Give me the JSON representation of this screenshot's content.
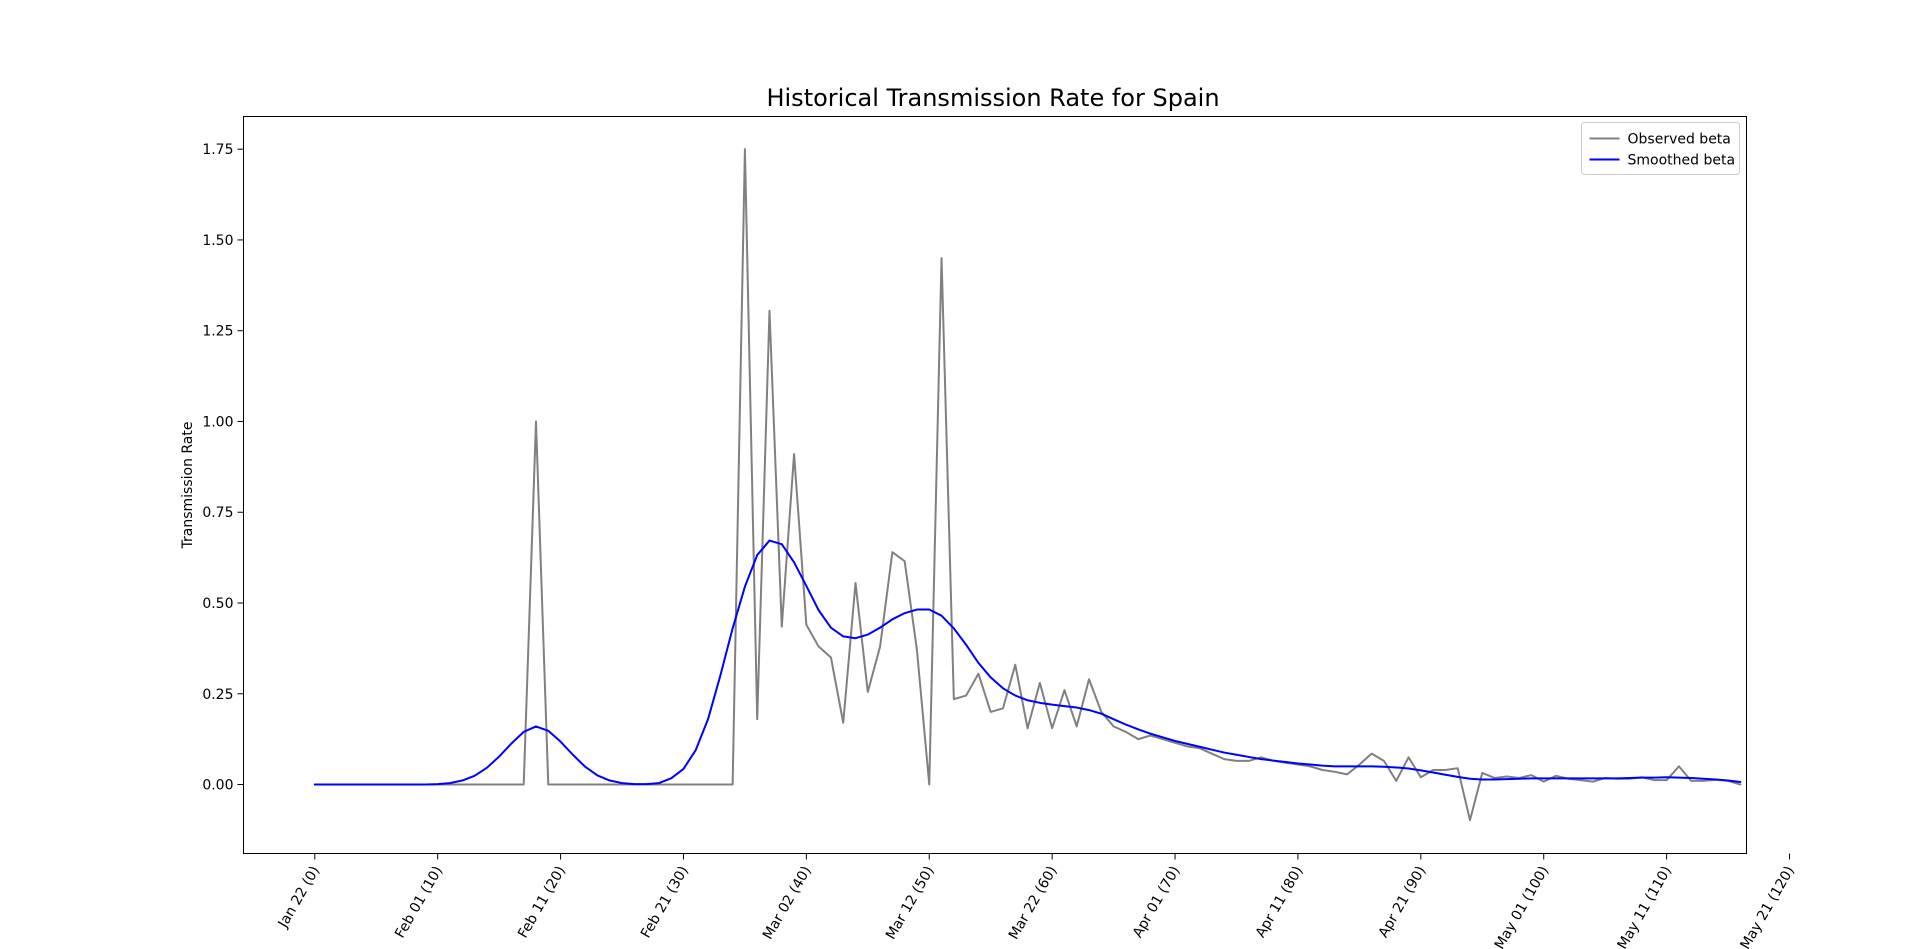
{
  "chart_data": {
    "type": "line",
    "title": "Historical Transmission Rate for Spain",
    "xlabel": "",
    "ylabel": "Transmission Rate",
    "xlim": [
      -5.8,
      116.5
    ],
    "ylim": [
      -0.19,
      1.84
    ],
    "x_ticks": [
      {
        "value": 0,
        "label": "Jan 22  (0)"
      },
      {
        "value": 10,
        "label": "Feb 01  (10)"
      },
      {
        "value": 20,
        "label": "Feb 11  (20)"
      },
      {
        "value": 30,
        "label": "Feb 21  (30)"
      },
      {
        "value": 40,
        "label": "Mar 02  (40)"
      },
      {
        "value": 50,
        "label": "Mar 12  (50)"
      },
      {
        "value": 60,
        "label": "Mar 22  (60)"
      },
      {
        "value": 70,
        "label": "Apr 01  (70)"
      },
      {
        "value": 80,
        "label": "Apr 11  (80)"
      },
      {
        "value": 90,
        "label": "Apr 21  (90)"
      },
      {
        "value": 100,
        "label": "May 01  (100)"
      },
      {
        "value": 110,
        "label": "May 11  (110)"
      },
      {
        "value": 120,
        "label": "May 21  (120)"
      }
    ],
    "y_ticks": [
      {
        "value": 0.0,
        "label": "0.00"
      },
      {
        "value": 0.25,
        "label": "0.25"
      },
      {
        "value": 0.5,
        "label": "0.50"
      },
      {
        "value": 0.75,
        "label": "0.75"
      },
      {
        "value": 1.0,
        "label": "1.00"
      },
      {
        "value": 1.25,
        "label": "1.25"
      },
      {
        "value": 1.5,
        "label": "1.50"
      },
      {
        "value": 1.75,
        "label": "1.75"
      }
    ],
    "grid": false,
    "legend_position": "top-right",
    "series": [
      {
        "name": "Observed beta",
        "color": "#808080",
        "x": [
          0,
          1,
          2,
          3,
          4,
          5,
          6,
          7,
          8,
          9,
          10,
          11,
          12,
          13,
          14,
          15,
          16,
          17,
          18,
          19,
          20,
          21,
          22,
          23,
          24,
          25,
          26,
          27,
          28,
          29,
          30,
          31,
          32,
          33,
          34,
          35,
          36,
          37,
          38,
          39,
          40,
          41,
          42,
          43,
          44,
          45,
          46,
          47,
          48,
          49,
          50,
          51,
          52,
          53,
          54,
          55,
          56,
          57,
          58,
          59,
          60,
          61,
          62,
          63,
          64,
          65,
          66,
          67,
          68,
          69,
          70,
          71,
          72,
          73,
          74,
          75,
          76,
          77,
          78,
          79,
          80,
          81,
          82,
          83,
          84,
          85,
          86,
          87,
          88,
          89,
          90,
          91,
          92,
          93,
          94,
          95,
          96,
          97,
          98,
          99,
          100,
          101,
          102,
          103,
          104,
          105,
          106,
          107,
          108,
          109,
          110,
          111,
          112,
          113,
          114,
          115,
          116
        ],
        "y": [
          0,
          0,
          0,
          0,
          0,
          0,
          0,
          0,
          0,
          0,
          0,
          0,
          0,
          0,
          0,
          0,
          0,
          0,
          1.0,
          0,
          0,
          0,
          0,
          0,
          0,
          0,
          0,
          0,
          0,
          0,
          0,
          0,
          0,
          0,
          0,
          1.75,
          0.18,
          1.305,
          0.435,
          0.91,
          0.44,
          0.38,
          0.35,
          0.17,
          0.555,
          0.255,
          0.38,
          0.64,
          0.615,
          0.37,
          0.0,
          1.45,
          0.235,
          0.245,
          0.305,
          0.2,
          0.21,
          0.33,
          0.155,
          0.28,
          0.155,
          0.26,
          0.16,
          0.29,
          0.2,
          0.16,
          0.145,
          0.125,
          0.135,
          0.125,
          0.115,
          0.105,
          0.1,
          0.085,
          0.07,
          0.065,
          0.065,
          0.075,
          0.065,
          0.06,
          0.055,
          0.05,
          0.04,
          0.035,
          0.028,
          0.055,
          0.085,
          0.065,
          0.01,
          0.075,
          0.02,
          0.04,
          0.04,
          0.045,
          -0.098,
          0.032,
          0.018,
          0.022,
          0.018,
          0.026,
          0.008,
          0.024,
          0.016,
          0.012,
          0.008,
          0.018,
          0.016,
          0.016,
          0.02,
          0.012,
          0.012,
          0.05,
          0.01,
          0.01,
          0.013,
          0.01,
          0.0
        ]
      },
      {
        "name": "Smoothed beta",
        "color": "#0000ff",
        "x": [
          0,
          1,
          2,
          3,
          4,
          5,
          6,
          7,
          8,
          9,
          10,
          11,
          12,
          13,
          14,
          15,
          16,
          17,
          18,
          19,
          20,
          21,
          22,
          23,
          24,
          25,
          26,
          27,
          28,
          29,
          30,
          31,
          32,
          33,
          34,
          35,
          36,
          37,
          38,
          39,
          40,
          41,
          42,
          43,
          44,
          45,
          46,
          47,
          48,
          49,
          50,
          51,
          52,
          53,
          54,
          55,
          56,
          57,
          58,
          59,
          60,
          61,
          62,
          63,
          64,
          65,
          66,
          67,
          68,
          69,
          70,
          71,
          72,
          73,
          74,
          75,
          76,
          77,
          78,
          79,
          80,
          81,
          82,
          83,
          84,
          85,
          86,
          87,
          88,
          89,
          90,
          91,
          92,
          93,
          94,
          95,
          96,
          97,
          98,
          99,
          100,
          101,
          102,
          103,
          104,
          105,
          106,
          107,
          108,
          109,
          110,
          111,
          112,
          113,
          114,
          115,
          116
        ],
        "y": [
          0,
          0,
          0,
          0,
          0,
          0,
          0,
          0,
          0,
          0,
          0.001,
          0.004,
          0.011,
          0.024,
          0.046,
          0.077,
          0.113,
          0.145,
          0.16,
          0.148,
          0.118,
          0.082,
          0.049,
          0.025,
          0.011,
          0.004,
          0.001,
          0.001,
          0.004,
          0.017,
          0.043,
          0.095,
          0.18,
          0.3,
          0.43,
          0.545,
          0.632,
          0.672,
          0.662,
          0.612,
          0.547,
          0.48,
          0.432,
          0.408,
          0.403,
          0.413,
          0.432,
          0.455,
          0.472,
          0.482,
          0.482,
          0.465,
          0.43,
          0.385,
          0.335,
          0.295,
          0.265,
          0.245,
          0.232,
          0.225,
          0.22,
          0.216,
          0.212,
          0.205,
          0.195,
          0.18,
          0.165,
          0.152,
          0.14,
          0.13,
          0.12,
          0.112,
          0.104,
          0.096,
          0.088,
          0.082,
          0.076,
          0.07,
          0.066,
          0.062,
          0.058,
          0.055,
          0.052,
          0.05,
          0.05,
          0.05,
          0.05,
          0.049,
          0.047,
          0.044,
          0.039,
          0.033,
          0.027,
          0.021,
          0.016,
          0.014,
          0.014,
          0.015,
          0.016,
          0.017,
          0.017,
          0.017,
          0.017,
          0.017,
          0.017,
          0.017,
          0.017,
          0.018,
          0.019,
          0.019,
          0.02,
          0.019,
          0.018,
          0.016,
          0.014,
          0.011,
          0.007
        ]
      }
    ]
  }
}
